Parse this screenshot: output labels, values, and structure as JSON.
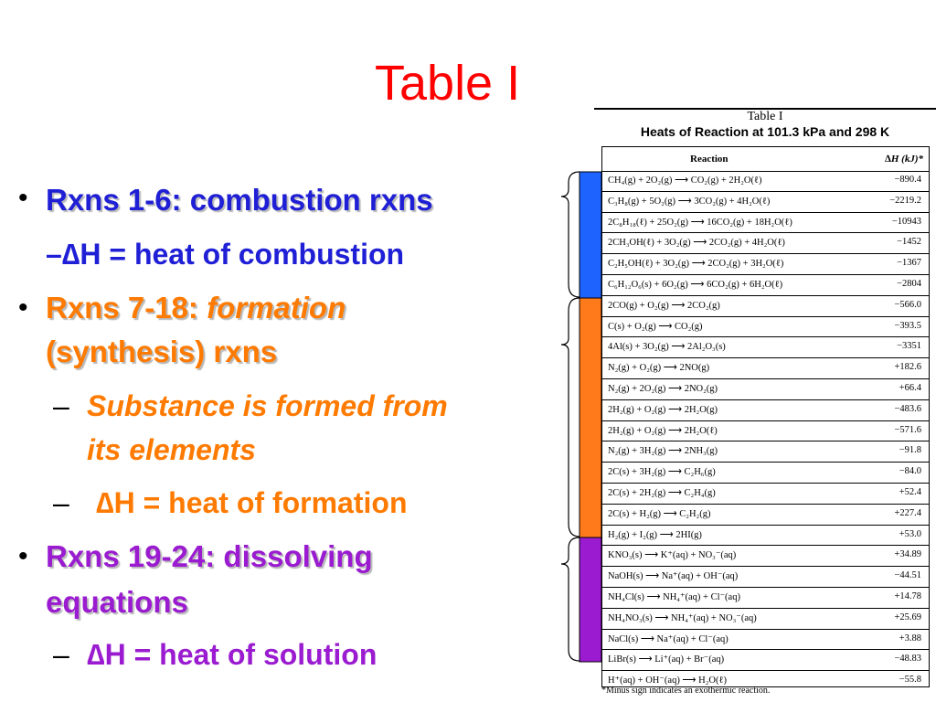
{
  "slide": {
    "title": "Table I"
  },
  "bullets": {
    "b1": "Rxns 1-6:  combustion rxns",
    "b1_sub": "–∆H = heat of combustion",
    "b2_line1_a": "Rxns 7-18:  ",
    "b2_line1_b": "formation",
    "b2_line2": "(synthesis) rxns",
    "b2_sub1_line1": "Substance is formed from",
    "b2_sub1_line2": "its elements",
    "b2_sub2": "∆H = heat of formation",
    "b3_line1": "Rxns 19-24:  dissolving",
    "b3_line2": "equations",
    "b3_sub": "∆H = heat of solution",
    "dot": "•",
    "dash": "–"
  },
  "table": {
    "title": "Table I",
    "subtitle": "Heats of Reaction at 101.3 kPa and 298 K",
    "col_reaction": "Reaction",
    "col_dh": "∆H (kJ)*",
    "footnote": "*Minus sign indicates an exothermic reaction.",
    "rows": [
      {
        "rxn": "CH₄(g) + 2O₂(g) ⟶ CO₂(g) + 2H₂O(ℓ)",
        "dh": "−890.4"
      },
      {
        "rxn": "C₃H₈(g) + 5O₂(g) ⟶ 3CO₂(g) + 4H₂O(ℓ)",
        "dh": "−2219.2"
      },
      {
        "rxn": "2C₈H₁₈(ℓ) + 25O₂(g) ⟶ 16CO₂(g) + 18H₂O(ℓ)",
        "dh": "−10943"
      },
      {
        "rxn": "2CH₃OH(ℓ) + 3O₂(g) ⟶ 2CO₂(g) + 4H₂O(ℓ)",
        "dh": "−1452"
      },
      {
        "rxn": "C₂H₅OH(ℓ) + 3O₂(g) ⟶ 2CO₂(g) + 3H₂O(ℓ)",
        "dh": "−1367"
      },
      {
        "rxn": "C₆H₁₂O₆(s) + 6O₂(g) ⟶ 6CO₂(g) + 6H₂O(ℓ)",
        "dh": "−2804"
      },
      {
        "rxn": "2CO(g) + O₂(g) ⟶ 2CO₂(g)",
        "dh": "−566.0"
      },
      {
        "rxn": "C(s) + O₂(g) ⟶ CO₂(g)",
        "dh": "−393.5"
      },
      {
        "rxn": "4Al(s) + 3O₂(g) ⟶ 2Al₂O₃(s)",
        "dh": "−3351"
      },
      {
        "rxn": "N₂(g) + O₂(g) ⟶ 2NO(g)",
        "dh": "+182.6"
      },
      {
        "rxn": "N₂(g) + 2O₂(g) ⟶ 2NO₂(g)",
        "dh": "+66.4"
      },
      {
        "rxn": "2H₂(g) + O₂(g) ⟶ 2H₂O(g)",
        "dh": "−483.6"
      },
      {
        "rxn": "2H₂(g) + O₂(g) ⟶ 2H₂O(ℓ)",
        "dh": "−571.6"
      },
      {
        "rxn": "N₂(g) + 3H₂(g) ⟶ 2NH₃(g)",
        "dh": "−91.8"
      },
      {
        "rxn": "2C(s) + 3H₂(g) ⟶ C₂H₆(g)",
        "dh": "−84.0"
      },
      {
        "rxn": "2C(s) + 2H₂(g) ⟶ C₂H₄(g)",
        "dh": "+52.4"
      },
      {
        "rxn": "2C(s) + H₂(g) ⟶ C₂H₂(g)",
        "dh": "+227.4"
      },
      {
        "rxn": "H₂(g) + I₂(g) ⟶ 2HI(g)",
        "dh": "+53.0"
      },
      {
        "rxn": "KNO₃(s) ⟶ K⁺(aq) + NO₃⁻(aq)",
        "dh": "+34.89"
      },
      {
        "rxn": "NaOH(s) ⟶ Na⁺(aq) + OH⁻(aq)",
        "dh": "−44.51"
      },
      {
        "rxn": "NH₄Cl(s) ⟶ NH₄⁺(aq) + Cl⁻(aq)",
        "dh": "+14.78"
      },
      {
        "rxn": "NH₄NO₃(s) ⟶ NH₄⁺(aq) + NO₃⁻(aq)",
        "dh": "+25.69"
      },
      {
        "rxn": "NaCl(s) ⟶ Na⁺(aq) + Cl⁻(aq)",
        "dh": "+3.88"
      },
      {
        "rxn": "LiBr(s) ⟶ Li⁺(aq) + Br⁻(aq)",
        "dh": "−48.83"
      },
      {
        "rxn": "H⁺(aq) + OH⁻(aq) ⟶ H₂O(ℓ)",
        "dh": "−55.8"
      }
    ]
  },
  "colors": {
    "title": "#ff0000",
    "combustion": "#1f1fd6",
    "formation": "#ff7a00",
    "solution": "#9a1bd0"
  }
}
